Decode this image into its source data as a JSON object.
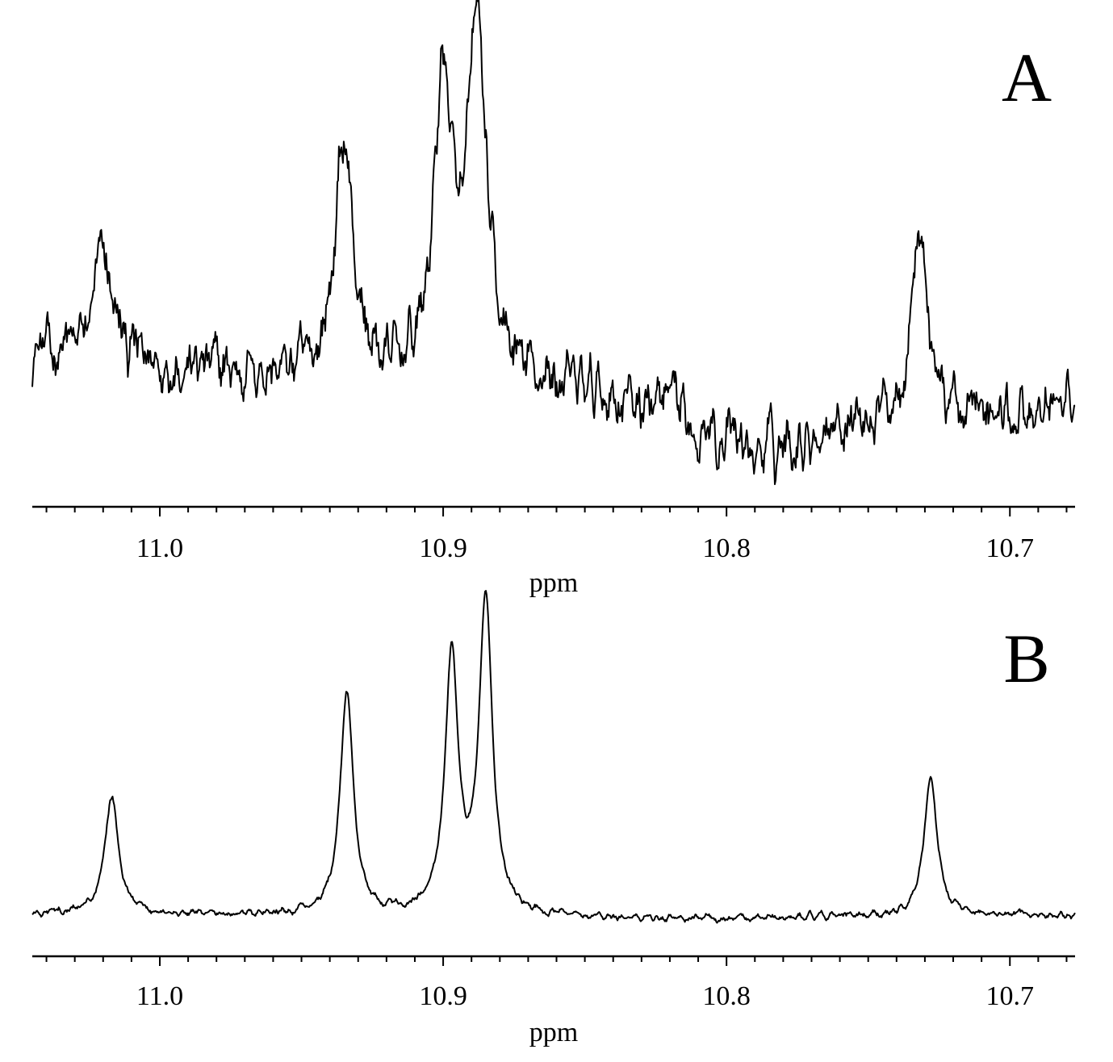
{
  "chart_data": [
    {
      "type": "line",
      "panel_label": "A",
      "xlabel": "ppm",
      "ylabel": "",
      "x_reversed": true,
      "xlim": [
        11.045,
        10.677
      ],
      "tick_labels": [
        "11.0",
        "10.9",
        "10.8",
        "10.7"
      ],
      "tick_values": [
        11.0,
        10.9,
        10.8,
        10.7
      ],
      "minor_tick_step": 0.01,
      "grid": false,
      "peaks": [
        {
          "x": 11.02,
          "height": 0.5
        },
        {
          "x": 10.935,
          "height": 0.75
        },
        {
          "x": 10.9,
          "height": 0.88
        },
        {
          "x": 10.888,
          "height": 1.0
        },
        {
          "x": 10.732,
          "height": 0.55
        }
      ],
      "baseline": [
        {
          "x": 11.045,
          "y": 0.28
        },
        {
          "x": 10.95,
          "y": 0.22
        },
        {
          "x": 10.86,
          "y": 0.2
        },
        {
          "x": 10.82,
          "y": 0.15
        },
        {
          "x": 10.79,
          "y": 0.05
        },
        {
          "x": 10.76,
          "y": 0.12
        },
        {
          "x": 10.7,
          "y": 0.13
        },
        {
          "x": 10.677,
          "y": 0.16
        }
      ],
      "noise_level": 0.07
    },
    {
      "type": "line",
      "panel_label": "B",
      "xlabel": "ppm",
      "ylabel": "",
      "x_reversed": true,
      "xlim": [
        11.045,
        10.677
      ],
      "tick_labels": [
        "11.0",
        "10.9",
        "10.8",
        "10.7"
      ],
      "tick_values": [
        11.0,
        10.9,
        10.8,
        10.7
      ],
      "minor_tick_step": 0.01,
      "grid": false,
      "peaks": [
        {
          "x": 11.017,
          "height": 0.4
        },
        {
          "x": 10.934,
          "height": 0.72
        },
        {
          "x": 10.897,
          "height": 0.82
        },
        {
          "x": 10.885,
          "height": 1.0
        },
        {
          "x": 10.728,
          "height": 0.45
        }
      ],
      "baseline": [
        {
          "x": 11.045,
          "y": 0.03
        },
        {
          "x": 10.82,
          "y": 0.015
        },
        {
          "x": 10.677,
          "y": 0.03
        }
      ],
      "noise_level": 0.012
    }
  ]
}
